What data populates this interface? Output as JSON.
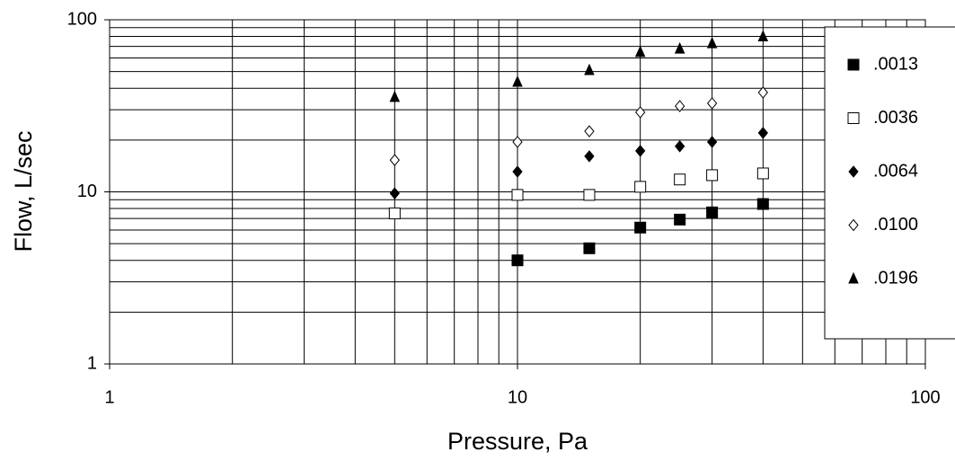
{
  "chart_data": {
    "type": "scatter",
    "x_label": "Pressure, Pa",
    "y_label": "Flow, L/sec",
    "x": [
      5,
      10,
      15,
      20,
      25,
      30,
      40
    ],
    "series": [
      {
        "name": ".0013",
        "color": "#000000",
        "marker": "square",
        "values": [
          null,
          4.0,
          4.7,
          6.2,
          6.9,
          7.6,
          8.5
        ]
      },
      {
        "name": ".0036",
        "color": "#000000",
        "marker": "square-open",
        "values": [
          7.5,
          9.6,
          9.6,
          10.7,
          11.8,
          12.5,
          12.8
        ]
      },
      {
        "name": ".0064",
        "color": "#000000",
        "marker": "diamond",
        "values": [
          9.8,
          13.1,
          16.1,
          17.3,
          18.4,
          19.5,
          22
        ]
      },
      {
        "name": ".0100",
        "color": "#000000",
        "marker": "diamond-open",
        "values": [
          15.3,
          19.5,
          22.5,
          29,
          31.5,
          32.7,
          37.8
        ]
      },
      {
        "name": ".0196",
        "color": "#000000",
        "marker": "triangle",
        "values": [
          35.6,
          43.6,
          51,
          65,
          68,
          73,
          80
        ]
      }
    ],
    "xlim": [
      1,
      100
    ],
    "ylim": [
      1,
      100
    ],
    "xticks": [
      1,
      10,
      100
    ],
    "yticks": [
      1,
      10,
      100
    ],
    "log_x": true,
    "log_y": true,
    "grid": true,
    "minor_grid": true,
    "legend": "right"
  }
}
